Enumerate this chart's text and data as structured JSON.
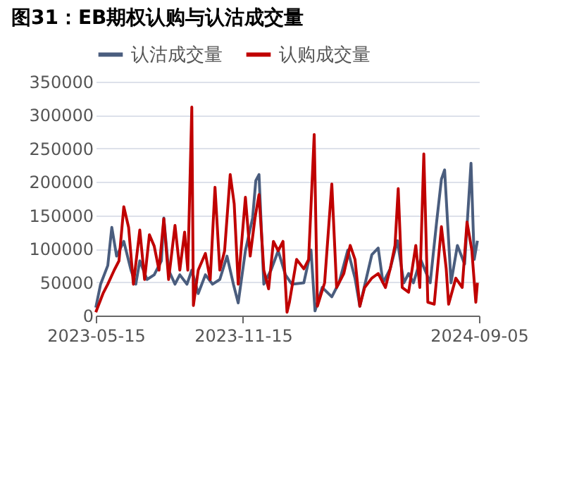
{
  "chart_data": {
    "type": "line",
    "title": "图31：EB期权认购与认沽成交量",
    "xlim": [
      "2023-05-15",
      "2024-09-05"
    ],
    "xticks": [
      {
        "value": "2023-05-15",
        "label": "2023-05-15"
      },
      {
        "value": "2023-11-15",
        "label": "2023-11-15"
      },
      {
        "value": "2024-09-05",
        "label": "2024-09-05"
      }
    ],
    "ylim": [
      0,
      350000
    ],
    "yticks": [
      0,
      50000,
      100000,
      150000,
      200000,
      250000,
      300000,
      350000
    ],
    "grid": "y",
    "legend": "top",
    "marker": "none",
    "line_style": "solid",
    "series": [
      {
        "name": "认沽成交量",
        "color": "#4a5d7e",
        "x": [
          "2023-05-15",
          "2023-05-21",
          "2023-05-30",
          "2023-06-04",
          "2023-06-10",
          "2023-06-19",
          "2023-06-28",
          "2023-07-04",
          "2023-07-09",
          "2023-07-18",
          "2023-07-27",
          "2023-08-05",
          "2023-08-08",
          "2023-08-14",
          "2023-08-22",
          "2023-08-28",
          "2023-09-06",
          "2023-09-12",
          "2023-09-20",
          "2023-09-29",
          "2023-10-08",
          "2023-10-17",
          "2023-10-26",
          "2023-11-03",
          "2023-11-09",
          "2023-11-18",
          "2023-11-27",
          "2023-12-01",
          "2023-12-05",
          "2023-12-11",
          "2023-12-20",
          "2023-12-29",
          "2024-01-07",
          "2024-01-15",
          "2024-01-30",
          "2024-02-08",
          "2024-02-13",
          "2024-02-22",
          "2024-03-05",
          "2024-03-14",
          "2024-03-25",
          "2024-04-03",
          "2024-04-09",
          "2024-04-24",
          "2024-05-02",
          "2024-05-08",
          "2024-05-17",
          "2024-05-26",
          "2024-06-03",
          "2024-06-09",
          "2024-06-15",
          "2024-06-24",
          "2024-07-06",
          "2024-07-14",
          "2024-07-20",
          "2024-07-24",
          "2024-08-01",
          "2024-08-09",
          "2024-08-18",
          "2024-08-26",
          "2024-08-30",
          "2024-09-03"
        ],
        "values": [
          12000,
          47000,
          75000,
          132000,
          89000,
          111000,
          68000,
          47000,
          82000,
          54000,
          61000,
          82000,
          146000,
          68000,
          47000,
          61000,
          47000,
          68000,
          33000,
          61000,
          47000,
          54000,
          89000,
          47000,
          19000,
          97000,
          146000,
          202000,
          211000,
          47000,
          68000,
          97000,
          61000,
          47000,
          49000,
          98000,
          7000,
          42000,
          28000,
          49000,
          98000,
          56000,
          14000,
          91000,
          101000,
          49000,
          70000,
          112000,
          49000,
          63000,
          49000,
          84000,
          49000,
          140000,
          204000,
          218000,
          49000,
          105000,
          77000,
          228000,
          84000,
          112000
        ]
      },
      {
        "name": "认购成交量",
        "color": "#c00000",
        "x": [
          "2023-05-15",
          "2023-05-24",
          "2023-05-30",
          "2023-06-07",
          "2023-06-13",
          "2023-06-19",
          "2023-06-25",
          "2023-07-01",
          "2023-07-09",
          "2023-07-15",
          "2023-07-21",
          "2023-07-27",
          "2023-08-02",
          "2023-08-08",
          "2023-08-14",
          "2023-08-22",
          "2023-08-28",
          "2023-09-03",
          "2023-09-07",
          "2023-09-12",
          "2023-09-14",
          "2023-09-20",
          "2023-09-29",
          "2023-10-05",
          "2023-10-11",
          "2023-10-17",
          "2023-10-23",
          "2023-10-30",
          "2023-11-04",
          "2023-11-09",
          "2023-11-18",
          "2023-11-24",
          "2023-11-30",
          "2023-12-05",
          "2023-12-11",
          "2023-12-17",
          "2023-12-23",
          "2023-12-29",
          "2024-01-04",
          "2024-01-09",
          "2024-01-12",
          "2024-01-21",
          "2024-01-30",
          "2024-02-05",
          "2024-02-12",
          "2024-02-16",
          "2024-02-25",
          "2024-03-05",
          "2024-03-11",
          "2024-03-20",
          "2024-03-28",
          "2024-04-03",
          "2024-04-09",
          "2024-04-15",
          "2024-04-24",
          "2024-05-02",
          "2024-05-11",
          "2024-05-17",
          "2024-05-23",
          "2024-05-27",
          "2024-06-01",
          "2024-06-09",
          "2024-06-18",
          "2024-06-23",
          "2024-06-28",
          "2024-07-03",
          "2024-07-11",
          "2024-07-20",
          "2024-07-26",
          "2024-07-29",
          "2024-08-07",
          "2024-08-15",
          "2024-08-21",
          "2024-08-27",
          "2024-09-01",
          "2024-09-03"
        ],
        "values": [
          5000,
          33000,
          47000,
          68000,
          82000,
          163000,
          132000,
          47000,
          128000,
          54000,
          121000,
          104000,
          68000,
          145000,
          54000,
          135000,
          68000,
          125000,
          68000,
          312000,
          15000,
          68000,
          93000,
          54000,
          192000,
          68000,
          97000,
          211000,
          167000,
          47000,
          177000,
          89000,
          146000,
          181000,
          68000,
          40000,
          111000,
          97000,
          111000,
          5000,
          20000,
          84000,
          70000,
          84000,
          271000,
          14000,
          49000,
          197000,
          42000,
          63000,
          105000,
          84000,
          14000,
          42000,
          56000,
          63000,
          42000,
          70000,
          105000,
          190000,
          42000,
          35000,
          105000,
          42000,
          242000,
          20000,
          17000,
          133000,
          70000,
          17000,
          56000,
          42000,
          140000,
          98000,
          20000,
          49000
        ]
      }
    ]
  }
}
